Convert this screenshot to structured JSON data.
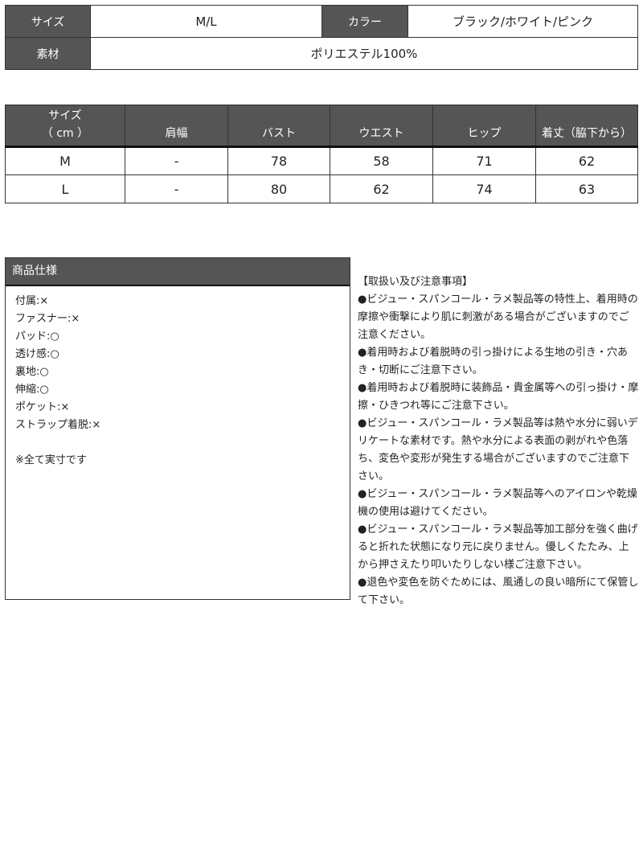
{
  "basic_info": {
    "size_label": "サイズ",
    "size_value": "M/L",
    "color_label": "カラー",
    "color_value": "ブラック/ホワイト/ピンク",
    "material_label": "素材",
    "material_value": "ポリエステル100%"
  },
  "size_table": {
    "headers": [
      "サイズ",
      "（ cm ）",
      "肩幅",
      "バスト",
      "ウエスト",
      "ヒップ",
      "着丈（脇下から）"
    ],
    "rows": [
      [
        "M",
        "-",
        "78",
        "58",
        "71",
        "62"
      ],
      [
        "L",
        "-",
        "80",
        "62",
        "74",
        "63"
      ]
    ]
  },
  "spec": {
    "title": "商品仕様",
    "items": [
      "付属:×",
      "ファスナー:×",
      "パッド:○",
      "透け感:○",
      "裏地:○",
      "伸縮:○",
      "ポケット:×",
      "ストラップ着脱:×"
    ],
    "note": "※全て実寸です"
  },
  "notes": {
    "title": "【取扱い及び注意事項】",
    "items": [
      "●ビジュー・スパンコール・ラメ製品等の特性上、着用時の摩擦や衝撃により肌に刺激がある場合がございますのでご注意ください。",
      "●着用時および着脱時の引っ掛けによる生地の引き・穴あき・切断にご注意下さい。",
      "●着用時および着脱時に装飾品・貴金属等への引っ掛け・摩擦・ひきつれ等にご注意下さい。",
      "●ビジュー・スパンコール・ラメ製品等は熱や水分に弱いデリケートな素材です。熱や水分による表面の剥がれや色落ち、変色や変形が発生する場合がございますのでご注意下さい。",
      "●ビジュー・スパンコール・ラメ製品等へのアイロンや乾燥機の使用は避けてください。",
      "●ビジュー・スパンコール・ラメ製品等加工部分を強く曲げると折れた状態になり元に戻りません。優しくたたみ、上から押さえたり叩いたりしない様ご注意下さい。",
      "●退色や変色を防ぐためには、風通しの良い暗所にて保管して下さい。"
    ]
  },
  "colors": {
    "header_bg": "#555555",
    "border": "#333333"
  }
}
